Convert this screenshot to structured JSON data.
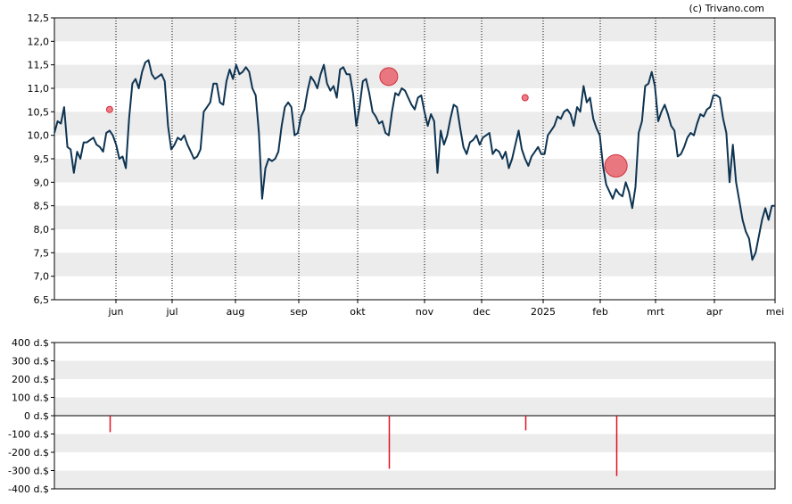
{
  "credit": "(c) Trivano.com",
  "chart_data": [
    {
      "type": "line",
      "title": "",
      "ylim": [
        6.5,
        12.5
      ],
      "y_ticks": [
        "6,5",
        "7,0",
        "7,5",
        "8,0",
        "8,5",
        "9,0",
        "9,5",
        "10,0",
        "10,5",
        "11,0",
        "11,5",
        "12,0",
        "12,5"
      ],
      "x_ticks": [
        "jun",
        "jul",
        "aug",
        "sep",
        "okt",
        "nov",
        "dec",
        "2025",
        "feb",
        "mrt",
        "apr",
        "mei"
      ],
      "grid": "alternating horizontal bands, dotted vertical month lines",
      "line_color": "#0e3452",
      "marker_color": "#e8505b",
      "series": [
        {
          "values": [
            10.05,
            10.3,
            10.25,
            10.6,
            9.75,
            9.7,
            9.2,
            9.65,
            9.5,
            9.85,
            9.85,
            9.9,
            9.95,
            9.8,
            9.75,
            9.65,
            10.05,
            10.1,
            10.0,
            9.8,
            9.5,
            9.55,
            9.3,
            10.35,
            11.1,
            11.2,
            11.0,
            11.35,
            11.55,
            11.6,
            11.3,
            11.2,
            11.25,
            11.3,
            11.15,
            10.2,
            9.7,
            9.8,
            9.95,
            9.9,
            10.0,
            9.8,
            9.65,
            9.5,
            9.55,
            9.7,
            10.5,
            10.6,
            10.7,
            11.1,
            11.1,
            10.7,
            10.65,
            11.15,
            11.4,
            11.2,
            11.5,
            11.3,
            11.35,
            11.45,
            11.35,
            11.0,
            10.85,
            10.05,
            8.65,
            9.3,
            9.5,
            9.45,
            9.5,
            9.65,
            10.2,
            10.6,
            10.7,
            10.6,
            10.0,
            10.05,
            10.4,
            10.55,
            10.95,
            11.25,
            11.15,
            11.0,
            11.3,
            11.5,
            11.1,
            10.95,
            11.05,
            10.8,
            11.4,
            11.45,
            11.3,
            11.3,
            10.9,
            10.2,
            10.6,
            11.15,
            11.2,
            10.9,
            10.5,
            10.4,
            10.25,
            10.3,
            10.05,
            10.0,
            10.5,
            10.9,
            10.85,
            11.0,
            10.95,
            10.8,
            10.65,
            10.55,
            10.8,
            10.85,
            10.5,
            10.2,
            10.45,
            10.3,
            9.2,
            10.1,
            9.8,
            10.0,
            10.35,
            10.65,
            10.6,
            10.15,
            9.75,
            9.6,
            9.85,
            9.9,
            10.0,
            9.8,
            9.95,
            10.0,
            10.05,
            9.6,
            9.7,
            9.65,
            9.5,
            9.65,
            9.3,
            9.5,
            9.8,
            10.1,
            9.7,
            9.5,
            9.35,
            9.55,
            9.65,
            9.75,
            9.6,
            9.6,
            10.0,
            10.1,
            10.2,
            10.4,
            10.35,
            10.5,
            10.55,
            10.45,
            10.2,
            10.6,
            10.5,
            11.05,
            10.7,
            10.8,
            10.35,
            10.15,
            10.0,
            9.35,
            8.95,
            8.8,
            8.65,
            8.85,
            8.75,
            8.7,
            9.0,
            8.8,
            8.45,
            8.9,
            10.05,
            10.3,
            11.05,
            11.1,
            11.35,
            11.05,
            10.3,
            10.5,
            10.65,
            10.45,
            10.2,
            10.1,
            9.55,
            9.6,
            9.75,
            9.95,
            10.05,
            10.0,
            10.25,
            10.45,
            10.4,
            10.55,
            10.6,
            10.85,
            10.85,
            10.8,
            10.35,
            10.05,
            9.0,
            9.8,
            9.0,
            8.6,
            8.2,
            7.95,
            7.8,
            7.35,
            7.5,
            7.85,
            8.2,
            8.45,
            8.2,
            8.5,
            8.5
          ]
        }
      ],
      "markers": [
        {
          "x_index": 17,
          "value": 10.55,
          "size": "small"
        },
        {
          "x_index": 103,
          "value": 11.25,
          "size": "medium"
        },
        {
          "x_index": 145,
          "value": 10.8,
          "size": "small"
        },
        {
          "x_index": 173,
          "value": 9.35,
          "size": "large"
        }
      ]
    },
    {
      "type": "bar",
      "title": "",
      "ylim": [
        -400,
        400
      ],
      "y_ticks": [
        "400 d.$",
        "300 d.$",
        "200 d.$",
        "100 d.$",
        "0 d.$",
        "-100 d.$",
        "-200 d.$",
        "-300 d.$",
        "-400 d.$"
      ],
      "bar_color": "#e0101e",
      "bars": [
        {
          "x_index": 17,
          "value": -90
        },
        {
          "x_index": 103,
          "value": -290
        },
        {
          "x_index": 145,
          "value": -80
        },
        {
          "x_index": 173,
          "value": -330
        }
      ]
    }
  ]
}
